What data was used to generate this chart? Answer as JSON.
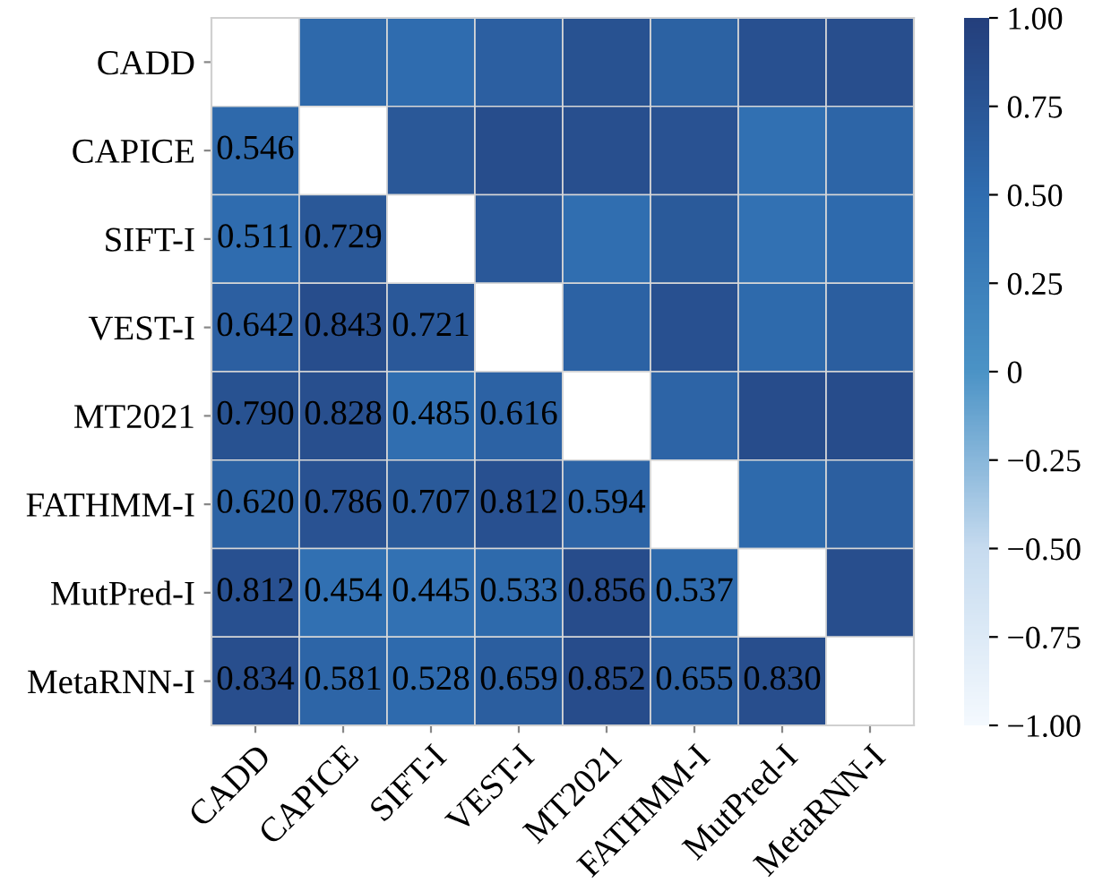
{
  "chart_data": {
    "type": "heatmap",
    "categories": [
      "CADD",
      "CAPICE",
      "SIFT-I",
      "VEST-I",
      "MT2021",
      "FATHMM-I",
      "MutPred-I",
      "MetaRNN-I"
    ],
    "y_categories": [
      "CADD",
      "CAPICE",
      "SIFT-I",
      "VEST-I",
      "MT2021",
      "FATHMM-I",
      "MutPred-I",
      "MetaRNN-I"
    ],
    "cells": [
      [
        null,
        0.546,
        0.511,
        0.642,
        0.79,
        0.62,
        0.812,
        0.834
      ],
      [
        0.546,
        null,
        0.729,
        0.843,
        0.828,
        0.786,
        0.454,
        0.581
      ],
      [
        0.511,
        0.729,
        null,
        0.721,
        0.485,
        0.707,
        0.445,
        0.528
      ],
      [
        0.642,
        0.843,
        0.721,
        null,
        0.616,
        0.812,
        0.533,
        0.659
      ],
      [
        0.79,
        0.828,
        0.485,
        0.616,
        null,
        0.594,
        0.856,
        0.852
      ],
      [
        0.62,
        0.786,
        0.707,
        0.812,
        0.594,
        null,
        0.537,
        0.655
      ],
      [
        0.812,
        0.454,
        0.445,
        0.533,
        0.856,
        0.537,
        null,
        0.83
      ],
      [
        0.834,
        0.581,
        0.528,
        0.659,
        0.852,
        0.655,
        0.83,
        null
      ]
    ],
    "cell_labels": [
      [
        null,
        null,
        null,
        null,
        null,
        null,
        null,
        null
      ],
      [
        "0.546",
        null,
        null,
        null,
        null,
        null,
        null,
        null
      ],
      [
        "0.511",
        "0.729",
        null,
        null,
        null,
        null,
        null,
        null
      ],
      [
        "0.642",
        "0.843",
        "0.721",
        null,
        null,
        null,
        null,
        null
      ],
      [
        "0.790",
        "0.828",
        "0.485",
        "0.616",
        null,
        null,
        null,
        null
      ],
      [
        "0.620",
        "0.786",
        "0.707",
        "0.812",
        "0.594",
        null,
        null,
        null
      ],
      [
        "0.812",
        "0.454",
        "0.445",
        "0.533",
        "0.856",
        "0.537",
        null,
        null
      ],
      [
        "0.834",
        "0.581",
        "0.528",
        "0.659",
        "0.852",
        "0.655",
        "0.830",
        null
      ]
    ],
    "clim": [
      -1.0,
      1.0
    ],
    "cticks": [
      {
        "value": 1.0,
        "label": "1.00"
      },
      {
        "value": 0.75,
        "label": "0.75"
      },
      {
        "value": 0.5,
        "label": "0.50"
      },
      {
        "value": 0.25,
        "label": "0.25"
      },
      {
        "value": 0,
        "label": "0"
      },
      {
        "value": -0.25,
        "label": "−0.25"
      },
      {
        "value": -0.5,
        "label": "−0.50"
      },
      {
        "value": -0.75,
        "label": "−0.75"
      },
      {
        "value": -1.0,
        "label": "−1.00"
      }
    ]
  }
}
